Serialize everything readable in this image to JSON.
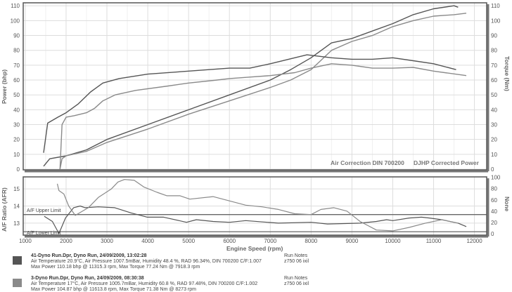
{
  "chart_data": [
    {
      "type": "line",
      "title": "",
      "xlabel": "Engine Speed (rpm)",
      "ylabel": "Power (bhp)",
      "y2label": "Torque (Nm)",
      "xlim": [
        950,
        12300
      ],
      "ylim": [
        0,
        112
      ],
      "y2lim": [
        0,
        112
      ],
      "xticks": [
        1000,
        2000,
        3000,
        4000,
        5000,
        6000,
        7000,
        8000,
        9000,
        10000,
        11000,
        12000
      ],
      "yticks": [
        0,
        10,
        20,
        30,
        40,
        50,
        60,
        70,
        80,
        90,
        100,
        110
      ],
      "y2ticks": [
        0,
        10,
        20,
        30,
        40,
        50,
        60,
        70,
        80,
        90,
        100,
        110
      ],
      "grid": true,
      "annotations": [
        "Air Correction DIN 700200",
        "DJHP Corrected Power"
      ],
      "series": [
        {
          "name": "41-Dyno Run Power (bhp)",
          "color": "#555555",
          "x": [
            1450,
            1600,
            2000,
            2500,
            3000,
            4000,
            5000,
            6000,
            7000,
            7500,
            8000,
            8500,
            9000,
            9500,
            10000,
            10500,
            11000,
            11500,
            11600
          ],
          "y": [
            2,
            7,
            9,
            13,
            20,
            30,
            40,
            50,
            60,
            67,
            75,
            85,
            88,
            93,
            98,
            104,
            108,
            110,
            109
          ]
        },
        {
          "name": "3-Dyno Run Power (bhp)",
          "color": "#8a8a8a",
          "x": [
            1850,
            1900,
            2000,
            2500,
            3000,
            4000,
            5000,
            6000,
            7000,
            7500,
            8000,
            8500,
            9000,
            9500,
            10000,
            10500,
            11000,
            11500,
            11800
          ],
          "y": [
            0,
            7,
            9,
            12,
            18,
            27,
            37,
            46,
            55,
            60,
            67,
            80,
            86,
            90,
            96,
            100,
            103,
            104,
            105
          ]
        },
        {
          "name": "41-Dyno Run Torque (Nm)",
          "color": "#555555",
          "x": [
            1450,
            1550,
            1800,
            2000,
            2300,
            2600,
            2900,
            3300,
            4000,
            5000,
            6000,
            6500,
            7000,
            7900,
            8500,
            9000,
            9500,
            10000,
            10500,
            11000,
            11550
          ],
          "y": [
            11,
            31,
            35,
            38,
            44,
            52,
            58,
            61,
            64,
            66,
            68,
            68,
            71,
            77,
            75,
            74,
            74,
            75,
            73,
            71,
            67
          ]
        },
        {
          "name": "3-Dyno Run Torque (Nm)",
          "color": "#8a8a8a",
          "x": [
            1850,
            1900,
            2000,
            2200,
            2500,
            2700,
            2900,
            3200,
            3700,
            4500,
            5000,
            5700,
            6000,
            6500,
            7000,
            7600,
            8000,
            8500,
            9000,
            9500,
            10000,
            10500,
            11000,
            11800
          ],
          "y": [
            0,
            30,
            35,
            36,
            38,
            41,
            46,
            50,
            53,
            56,
            58,
            60,
            61,
            62,
            63,
            65,
            68,
            71,
            70,
            68,
            68,
            68.5,
            66,
            63
          ]
        }
      ]
    },
    {
      "type": "line",
      "xlabel": "Engine Speed (rpm)",
      "ylabel": "A/F Ratio (AFR)",
      "y2label": "None",
      "xlim": [
        950,
        12300
      ],
      "ylim": [
        12.3,
        15.7
      ],
      "y2lim": [
        0,
        102
      ],
      "yticks": [
        13,
        14,
        15
      ],
      "y2ticks": [
        0,
        20,
        40,
        60,
        80,
        100
      ],
      "grid": true,
      "limits": [
        {
          "label": "A/F Upper Limit",
          "value": 13.5
        },
        {
          "label": "A/F Lower Limit",
          "value": 12.5
        }
      ],
      "series": [
        {
          "name": "41-Dyno Run AFR",
          "color": "#555555",
          "x": [
            1465,
            1665,
            1825,
            1985,
            2185,
            2345,
            2465,
            2790,
            3190,
            3590,
            3990,
            4390,
            4950,
            5190,
            5600,
            6000,
            6400,
            7200,
            8000,
            8400,
            9200,
            9600,
            9850,
            10000,
            10400,
            10700,
            10900,
            11200,
            11600,
            11800
          ],
          "y": [
            13.4,
            13.1,
            12.4,
            13.3,
            13.9,
            14.0,
            13.9,
            13.95,
            13.9,
            13.6,
            13.35,
            13.35,
            13.05,
            13.2,
            13.1,
            13.05,
            13.15,
            13.0,
            13.05,
            12.95,
            13.0,
            13.1,
            13.2,
            13.15,
            13.3,
            13.35,
            13.3,
            13.2,
            13.0,
            12.8
          ]
        },
        {
          "name": "3-Dyno Run AFR",
          "color": "#8a8a8a",
          "x": [
            1785,
            1825,
            1945,
            2065,
            2225,
            2545,
            2790,
            3110,
            3270,
            3430,
            3670,
            3910,
            4230,
            4470,
            4790,
            5030,
            5600,
            6000,
            6400,
            6800,
            7200,
            7600,
            8000,
            8240,
            8560,
            8880,
            9200,
            9600,
            10000,
            10400,
            10800,
            11200,
            11600
          ],
          "y": [
            15.3,
            14.9,
            14.7,
            14.0,
            13.45,
            13.9,
            14.5,
            15.0,
            15.4,
            15.55,
            15.5,
            15.1,
            14.8,
            14.6,
            14.6,
            14.4,
            14.55,
            14.3,
            14.05,
            13.95,
            13.8,
            13.55,
            13.5,
            13.8,
            13.9,
            13.7,
            13.1,
            12.6,
            12.55,
            12.75,
            13.0,
            13.2,
            13.0
          ]
        }
      ]
    }
  ],
  "legend": [
    {
      "color": "#555555",
      "title": "41-Dyno Run.Dpr,   Dyno Run,   24/09/2009,   13:02:28",
      "line2": "Air Temperature 20.9°C, Air Pressure 1007.5mBar, Humidity 48.4 %, RAD 96.34%,   DIN 700200  C/F:1.007",
      "line3": "Max Power 110.18 bhp @ 11315.3 rpm, Max Torque 77.24 Nm @ 7918.3 rpm",
      "notes_label": "Run Notes",
      "notes": "z750 06 ixil"
    },
    {
      "color": "#8a8a8a",
      "title": "3-Dyno Run.Dpr,   Dyno Run,   24/09/2009,   08:30:38",
      "line2": "Air Temperature 17°C, Air Pressure 1005.7mBar, Humidity 60.8 %, RAD 97.48%,   DIN 700200  C/F:1.002",
      "line3": "Max Power 104.87 bhp @ 11613.8 rpm, Max Torque 71.38 Nm @ 8273 rpm",
      "notes_label": "Run Notes",
      "notes": "z750 06 ixil"
    }
  ]
}
